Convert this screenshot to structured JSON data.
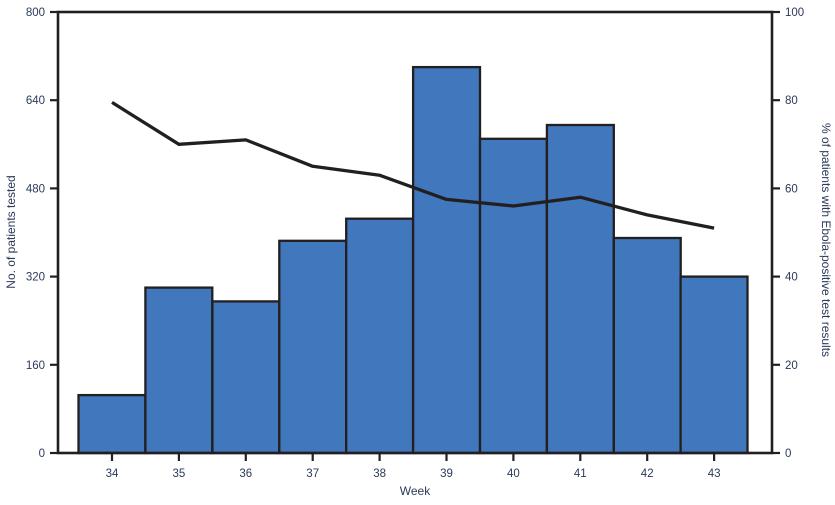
{
  "chart_data": {
    "type": "bar",
    "combo": "bar+line",
    "title": "",
    "xlabel": "Week",
    "categories": [
      34,
      35,
      36,
      37,
      38,
      39,
      40,
      41,
      42,
      43
    ],
    "series": [
      {
        "name": "No. of patients tested",
        "type": "bar",
        "axis": "left",
        "values": [
          105,
          300,
          275,
          385,
          425,
          700,
          570,
          595,
          390,
          320
        ]
      },
      {
        "name": "% of patients with Ebola-positive test results",
        "type": "line",
        "axis": "right",
        "values": [
          79.5,
          70,
          71,
          65,
          63,
          57.5,
          56,
          58,
          54,
          51
        ]
      }
    ],
    "left_axis": {
      "label": "No. of patients tested",
      "min": 0,
      "max": 800,
      "ticks": [
        0,
        160,
        320,
        480,
        640,
        800
      ]
    },
    "right_axis": {
      "label": "% of patients with Ebola-positive test results",
      "min": 0,
      "max": 100,
      "ticks": [
        0,
        20,
        40,
        60,
        80,
        100
      ]
    },
    "grid": "off",
    "legend": "none",
    "frame": "full box"
  },
  "colors": {
    "bar_fill": "#4177BC",
    "ink": "#231F20",
    "text": "#2B3A5A"
  }
}
